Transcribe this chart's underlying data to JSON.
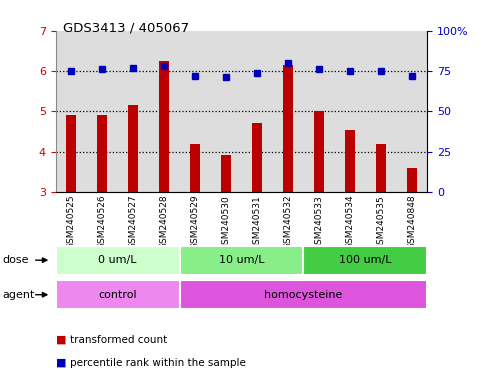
{
  "title": "GDS3413 / 405067",
  "samples": [
    "GSM240525",
    "GSM240526",
    "GSM240527",
    "GSM240528",
    "GSM240529",
    "GSM240530",
    "GSM240531",
    "GSM240532",
    "GSM240533",
    "GSM240534",
    "GSM240535",
    "GSM240848"
  ],
  "red_values": [
    4.9,
    4.9,
    5.15,
    6.25,
    4.2,
    3.92,
    4.7,
    6.15,
    5.0,
    4.55,
    4.2,
    3.6
  ],
  "blue_values": [
    75,
    76,
    77,
    78,
    72,
    71,
    74,
    80,
    76,
    75,
    75,
    72
  ],
  "red_color": "#bb0000",
  "blue_color": "#0000bb",
  "ylim_left": [
    3,
    7
  ],
  "ylim_right": [
    0,
    100
  ],
  "yticks_left": [
    3,
    4,
    5,
    6,
    7
  ],
  "yticks_right": [
    0,
    25,
    50,
    75,
    100
  ],
  "ytick_labels_right": [
    "0",
    "25",
    "50",
    "75",
    "100%"
  ],
  "dose_groups": [
    {
      "label": "0 um/L",
      "start": 0,
      "end": 4,
      "color": "#ccffcc"
    },
    {
      "label": "10 um/L",
      "start": 4,
      "end": 8,
      "color": "#88ee88"
    },
    {
      "label": "100 um/L",
      "start": 8,
      "end": 12,
      "color": "#44cc44"
    }
  ],
  "agent_groups": [
    {
      "label": "control",
      "start": 0,
      "end": 4,
      "color": "#ee88ee"
    },
    {
      "label": "homocysteine",
      "start": 4,
      "end": 12,
      "color": "#dd55dd"
    }
  ],
  "dose_label": "dose",
  "agent_label": "agent",
  "legend_red": "transformed count",
  "legend_blue": "percentile rank within the sample",
  "bar_width": 0.35,
  "background_color": "#ffffff",
  "plot_bg_color": "#ffffff",
  "grid_color": "#000000",
  "tick_label_color_left": "#cc0000",
  "tick_label_color_right": "#0000cc",
  "xtick_bg_color": "#dddddd"
}
